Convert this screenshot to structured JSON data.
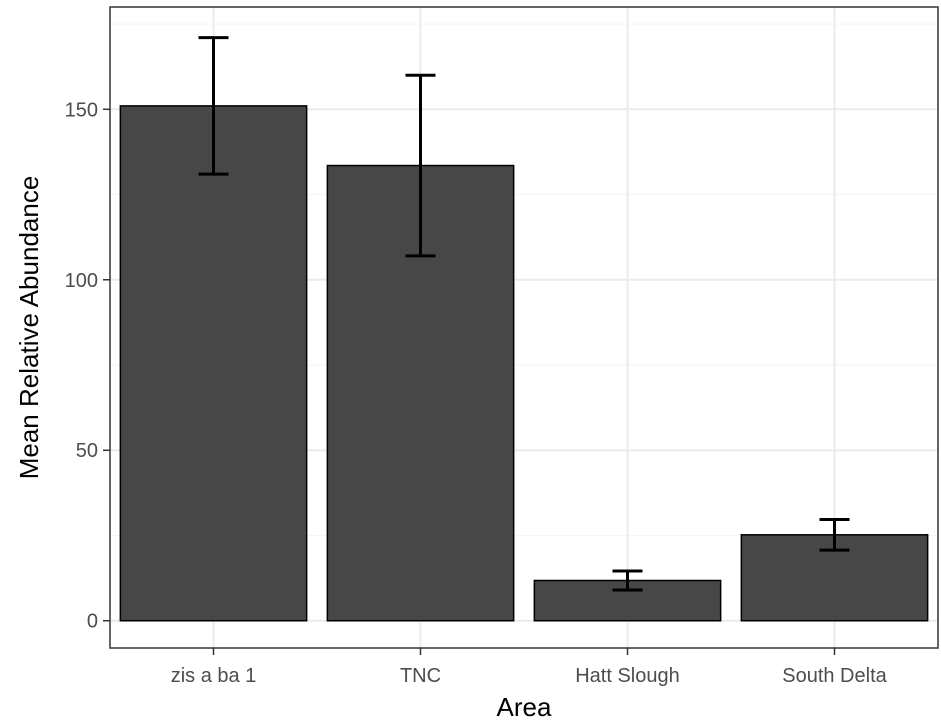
{
  "chart_data": {
    "type": "bar",
    "xlabel": "Area",
    "ylabel": "Mean Relative Abundance",
    "categories": [
      "zis a ba 1",
      "TNC",
      "Hatt Slough",
      "South Delta"
    ],
    "values": [
      151,
      133.5,
      11.8,
      25.2
    ],
    "error_low": [
      131,
      107,
      9,
      20.7
    ],
    "error_high": [
      171,
      160,
      14.6,
      29.7
    ],
    "y_ticks": [
      0,
      50,
      100,
      150
    ],
    "ylim": [
      -8,
      180
    ],
    "grid": true,
    "legend": "none",
    "colors": {
      "bar_fill": "#474747",
      "bar_stroke": "#000000",
      "error_bar": "#000000",
      "grid_major": "#ebebeb",
      "grid_minor": "#f5f5f5",
      "panel_border": "#333333",
      "tick_text": "#4d4d4d"
    }
  }
}
